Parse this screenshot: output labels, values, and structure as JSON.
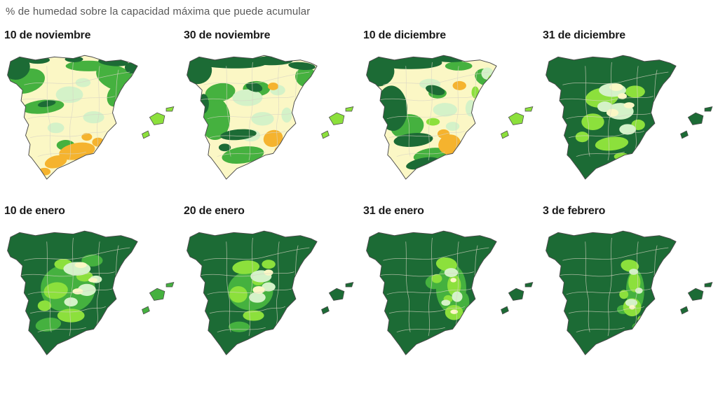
{
  "title": "% de humedad sobre la capacidad máxima que puede acumular",
  "palette": {
    "darkGreen": "#1c6b35",
    "midGreen": "#45b13f",
    "brightGreen": "#8ce03c",
    "paleMint": "#d4f2c8",
    "paleYellow": "#fbf7c5",
    "orange": "#f5b32e",
    "outline": "#4a4a4a",
    "provinceBorder": "#d8d4c4"
  },
  "panels": [
    {
      "date": "10 de noviembre",
      "base": "paleYellow",
      "islands": "brightGreen",
      "patches": [
        [
          "midGreen",
          32,
          50,
          26,
          16,
          -15
        ],
        [
          "midGreen",
          152,
          46,
          28,
          16,
          22
        ],
        [
          "midGreen",
          55,
          84,
          28,
          9,
          -6
        ],
        [
          "midGreen",
          115,
          30,
          30,
          7,
          0
        ],
        [
          "midGreen",
          150,
          70,
          10,
          14,
          15
        ],
        [
          "midGreen",
          85,
          135,
          12,
          7,
          0
        ],
        [
          "paleMint",
          90,
          68,
          18,
          11,
          0
        ],
        [
          "paleMint",
          122,
          98,
          14,
          8,
          0
        ],
        [
          "paleMint",
          72,
          112,
          11,
          7,
          0
        ],
        [
          "paleMint",
          108,
          52,
          10,
          6,
          0
        ],
        [
          "darkGreen",
          20,
          32,
          18,
          16,
          -20
        ],
        [
          "darkGreen",
          48,
          22,
          16,
          5,
          0
        ],
        [
          "darkGreen",
          96,
          21,
          12,
          4,
          0
        ],
        [
          "darkGreen",
          148,
          25,
          20,
          5,
          5
        ],
        [
          "darkGreen",
          172,
          33,
          9,
          7,
          20
        ],
        [
          "darkGreen",
          60,
          80,
          12,
          4,
          -10
        ],
        [
          "orange",
          100,
          143,
          24,
          11,
          -10
        ],
        [
          "orange",
          72,
          157,
          15,
          8,
          -15
        ],
        [
          "orange",
          57,
          170,
          8,
          5,
          0
        ],
        [
          "orange",
          128,
          131,
          8,
          6,
          0
        ],
        [
          "orange",
          113,
          124,
          7,
          5,
          0
        ]
      ]
    },
    {
      "date": "30 de noviembre",
      "base": "paleYellow",
      "islands": "brightGreen",
      "patches": [
        [
          "midGreen",
          45,
          100,
          20,
          28,
          0
        ],
        [
          "midGreen",
          52,
          65,
          20,
          12,
          -10
        ],
        [
          "midGreen",
          82,
          148,
          28,
          11,
          -8
        ],
        [
          "midGreen",
          166,
          45,
          15,
          13,
          20
        ],
        [
          "midGreen",
          100,
          60,
          18,
          10,
          0
        ],
        [
          "paleMint",
          88,
          72,
          20,
          11,
          0
        ],
        [
          "paleMint",
          108,
          100,
          15,
          9,
          0
        ],
        [
          "paleMint",
          128,
          62,
          10,
          7,
          0
        ],
        [
          "paleMint",
          92,
          122,
          13,
          8,
          0
        ],
        [
          "paleMint",
          140,
          95,
          7,
          10,
          0
        ],
        [
          "darkGreen",
          62,
          24,
          52,
          9,
          2
        ],
        [
          "darkGreen",
          120,
          23,
          28,
          6,
          0
        ],
        [
          "darkGreen",
          22,
          36,
          19,
          18,
          -15
        ],
        [
          "darkGreen",
          30,
          80,
          7,
          13,
          0
        ],
        [
          "darkGreen",
          97,
          58,
          11,
          6,
          15
        ],
        [
          "darkGreen",
          76,
          121,
          24,
          7,
          -5
        ],
        [
          "darkGreen",
          58,
          138,
          8,
          5,
          0
        ],
        [
          "darkGreen",
          160,
          30,
          18,
          5,
          5
        ],
        [
          "orange",
          122,
          126,
          13,
          11,
          -20
        ],
        [
          "orange",
          131,
          142,
          7,
          6,
          0
        ],
        [
          "orange",
          122,
          57,
          7,
          5,
          0
        ]
      ]
    },
    {
      "date": "10 de diciembre",
      "base": "paleYellow",
      "islands": "brightGreen",
      "patches": [
        [
          "midGreen",
          62,
          110,
          22,
          16,
          -10
        ],
        [
          "midGreen",
          92,
          148,
          22,
          9,
          -10
        ],
        [
          "midGreen",
          166,
          45,
          15,
          11,
          20
        ],
        [
          "midGreen",
          102,
          66,
          12,
          7,
          0
        ],
        [
          "midGreen",
          130,
          30,
          18,
          6,
          0
        ],
        [
          "paleMint",
          92,
          54,
          14,
          7,
          0
        ],
        [
          "paleMint",
          112,
          88,
          16,
          9,
          0
        ],
        [
          "paleMint",
          146,
          86,
          7,
          11,
          0
        ],
        [
          "paleMint",
          122,
          110,
          9,
          6,
          0
        ],
        [
          "paleMint",
          168,
          40,
          8,
          8,
          0
        ],
        [
          "brightGreen",
          173,
          52,
          6,
          11,
          10
        ],
        [
          "brightGreen",
          96,
          104,
          9,
          5,
          0
        ],
        [
          "brightGreen",
          152,
          65,
          5,
          8,
          0
        ],
        [
          "darkGreen",
          58,
          24,
          50,
          10,
          2
        ],
        [
          "darkGreen",
          24,
          38,
          21,
          19,
          -15
        ],
        [
          "darkGreen",
          42,
          86,
          20,
          30,
          -4
        ],
        [
          "darkGreen",
          70,
          128,
          26,
          9,
          -5
        ],
        [
          "darkGreen",
          82,
          159,
          22,
          7,
          -12
        ],
        [
          "darkGreen",
          99,
          62,
          13,
          6,
          15
        ],
        [
          "darkGreen",
          120,
          20,
          24,
          5,
          0
        ],
        [
          "orange",
          118,
          134,
          15,
          13,
          -15
        ],
        [
          "orange",
          110,
          120,
          8,
          6,
          0
        ],
        [
          "orange",
          131,
          56,
          9,
          6,
          0
        ]
      ]
    },
    {
      "date": "31 de diciembre",
      "base": "darkGreen",
      "islands": "darkGreen",
      "patches": [
        [
          "brightGreen",
          82,
          72,
          22,
          13,
          -8
        ],
        [
          "brightGreen",
          70,
          104,
          15,
          11,
          0
        ],
        [
          "brightGreen",
          95,
          133,
          22,
          9,
          -6
        ],
        [
          "brightGreen",
          126,
          64,
          13,
          8,
          0
        ],
        [
          "brightGreen",
          56,
          124,
          9,
          7,
          0
        ],
        [
          "brightGreen",
          130,
          108,
          9,
          7,
          0
        ],
        [
          "brightGreen",
          108,
          150,
          10,
          5,
          0
        ],
        [
          "paleMint",
          96,
          62,
          18,
          9,
          0
        ],
        [
          "paleMint",
          106,
          90,
          18,
          11,
          0
        ],
        [
          "paleMint",
          116,
          114,
          11,
          7,
          0
        ],
        [
          "paleMint",
          86,
          84,
          10,
          7,
          0
        ],
        [
          "paleYellow",
          101,
          58,
          9,
          5,
          0
        ],
        [
          "paleYellow",
          96,
          92,
          8,
          5,
          0
        ],
        [
          "paleYellow",
          118,
          82,
          7,
          4,
          0
        ],
        [
          "paleYellow",
          109,
          70,
          6,
          4,
          0
        ]
      ]
    },
    {
      "date": "10 de enero",
      "base": "darkGreen",
      "islands": "midGreen",
      "patches": [
        [
          "midGreen",
          88,
          92,
          36,
          32,
          0
        ],
        [
          "midGreen",
          62,
          140,
          17,
          9,
          -8
        ],
        [
          "midGreen",
          120,
          55,
          14,
          8,
          0
        ],
        [
          "brightGreen",
          72,
          95,
          16,
          11,
          -8
        ],
        [
          "brightGreen",
          92,
          128,
          18,
          9,
          0
        ],
        [
          "brightGreen",
          110,
          76,
          11,
          7,
          0
        ],
        [
          "brightGreen",
          57,
          115,
          9,
          7,
          0
        ],
        [
          "brightGreen",
          82,
          60,
          12,
          7,
          0
        ],
        [
          "paleMint",
          100,
          66,
          18,
          9,
          0
        ],
        [
          "paleMint",
          113,
          94,
          12,
          8,
          0
        ],
        [
          "paleMint",
          92,
          110,
          9,
          6,
          0
        ],
        [
          "paleMint",
          125,
          80,
          8,
          5,
          0
        ],
        [
          "paleYellow",
          105,
          61,
          8,
          4,
          0
        ],
        [
          "paleYellow",
          101,
          96,
          7,
          4,
          0
        ],
        [
          "paleYellow",
          121,
          81,
          6,
          3,
          0
        ]
      ]
    },
    {
      "date": "20 de enero",
      "base": "darkGreen",
      "islands": "darkGreen",
      "patches": [
        [
          "midGreen",
          92,
          95,
          30,
          26,
          0
        ],
        [
          "midGreen",
          77,
          143,
          14,
          7,
          0
        ],
        [
          "brightGreen",
          86,
          64,
          18,
          9,
          -5
        ],
        [
          "brightGreen",
          76,
          100,
          12,
          11,
          0
        ],
        [
          "brightGreen",
          96,
          128,
          14,
          7,
          0
        ],
        [
          "brightGreen",
          116,
          60,
          9,
          6,
          0
        ],
        [
          "brightGreen",
          102,
          82,
          8,
          6,
          0
        ],
        [
          "paleMint",
          106,
          76,
          14,
          8,
          0
        ],
        [
          "paleMint",
          101,
          104,
          11,
          7,
          0
        ],
        [
          "paleMint",
          116,
          90,
          9,
          6,
          0
        ],
        [
          "paleYellow",
          103,
          94,
          8,
          5,
          0
        ],
        [
          "paleYellow",
          116,
          71,
          6,
          4,
          0
        ]
      ]
    },
    {
      "date": "31 de enero",
      "base": "darkGreen",
      "islands": "darkGreen",
      "patches": [
        [
          "midGreen",
          120,
          92,
          20,
          32,
          0
        ],
        [
          "midGreen",
          97,
          84,
          11,
          9,
          0
        ],
        [
          "midGreen",
          138,
          110,
          6,
          12,
          0
        ],
        [
          "brightGreen",
          114,
          60,
          14,
          9,
          8
        ],
        [
          "brightGreen",
          124,
          88,
          9,
          14,
          0
        ],
        [
          "brightGreen",
          124,
          124,
          12,
          10,
          0
        ],
        [
          "brightGreen",
          101,
          79,
          7,
          6,
          0
        ],
        [
          "brightGreen",
          116,
          106,
          6,
          5,
          0
        ],
        [
          "paleMint",
          120,
          71,
          9,
          6,
          0
        ],
        [
          "paleMint",
          128,
          103,
          7,
          7,
          0
        ],
        [
          "paleMint",
          113,
          111,
          6,
          4,
          0
        ],
        [
          "paleYellow",
          123,
          81,
          4,
          3,
          0
        ],
        [
          "paleYellow",
          124,
          123,
          5,
          3,
          0
        ]
      ]
    },
    {
      "date": "3 de febrero",
      "base": "darkGreen",
      "islands": "darkGreen",
      "patches": [
        [
          "midGreen",
          126,
          95,
          12,
          28,
          0
        ],
        [
          "midGreen",
          128,
          143,
          6,
          5,
          0
        ],
        [
          "midGreen",
          110,
          120,
          8,
          6,
          0
        ],
        [
          "brightGreen",
          119,
          62,
          12,
          8,
          8
        ],
        [
          "brightGreen",
          125,
          84,
          8,
          13,
          0
        ],
        [
          "brightGreen",
          122,
          117,
          12,
          12,
          0
        ],
        [
          "brightGreen",
          111,
          100,
          6,
          6,
          0
        ],
        [
          "brightGreen",
          135,
          133,
          6,
          5,
          0
        ],
        [
          "paleMint",
          124,
          70,
          6,
          4,
          0
        ],
        [
          "paleMint",
          121,
          111,
          8,
          5,
          0
        ],
        [
          "paleMint",
          131,
          95,
          5,
          4,
          0
        ],
        [
          "paleYellow",
          122,
          117,
          4,
          3,
          0
        ]
      ]
    }
  ]
}
